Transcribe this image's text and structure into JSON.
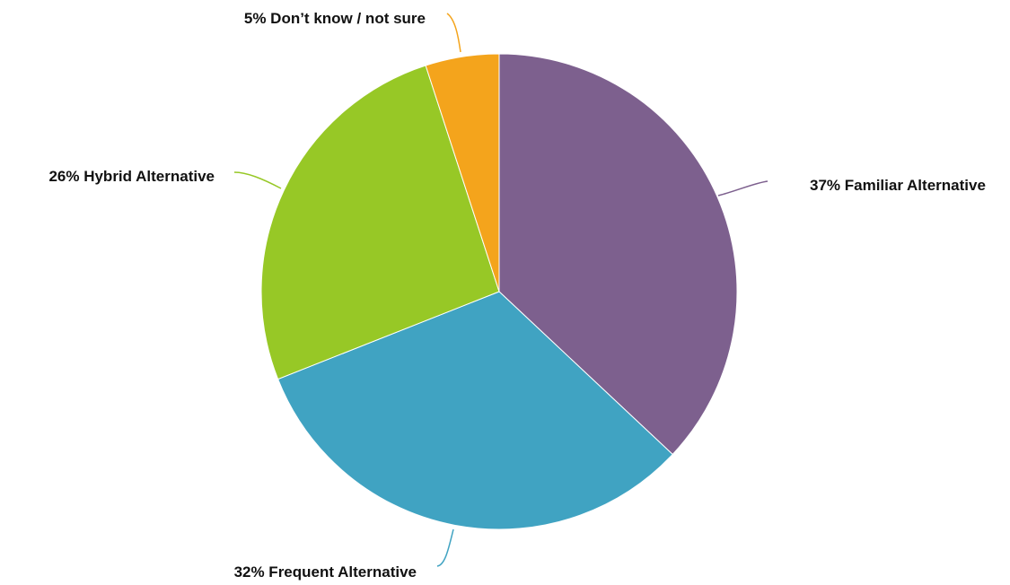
{
  "chart_data": {
    "type": "pie",
    "title": "",
    "start_angle_deg": 0,
    "direction": "clockwise",
    "slices": [
      {
        "name": "Familiar Alternative",
        "value": 37,
        "label": "37% Familiar Alternative",
        "color": "#7d608e"
      },
      {
        "name": "Frequent Alternative",
        "value": 32,
        "label": "32% Frequent Alternative",
        "color": "#40a3c2"
      },
      {
        "name": "Hybrid Alternative",
        "value": 26,
        "label": "26% Hybrid Alternative",
        "color": "#97c826"
      },
      {
        "name": "Don’t know / not sure",
        "value": 5,
        "label": "5% Don’t know / not sure",
        "color": "#f4a41c"
      }
    ],
    "legend": "none"
  }
}
